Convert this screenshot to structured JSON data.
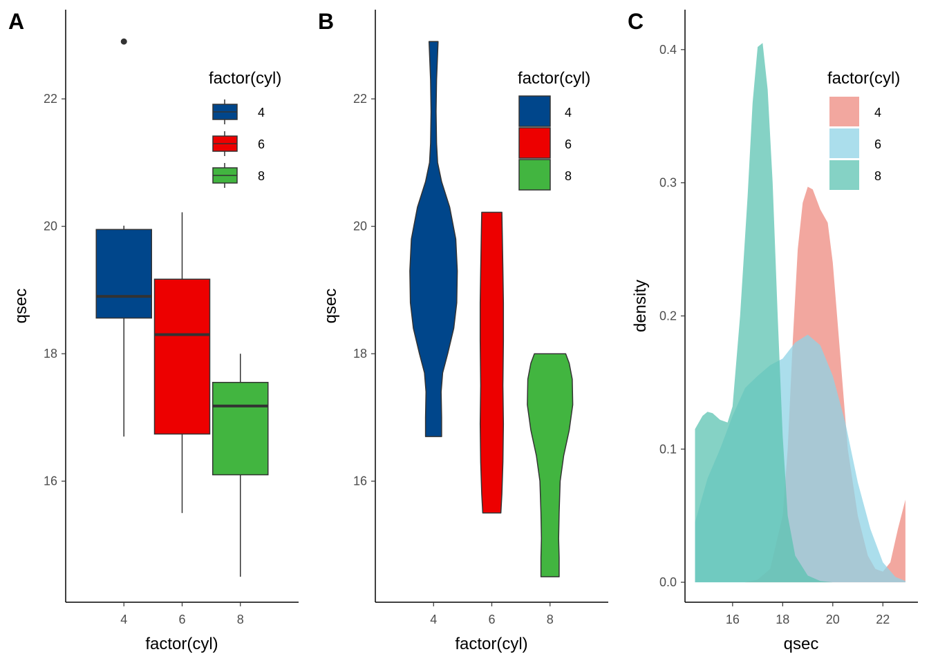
{
  "colors": {
    "box": {
      "4": "#00468B",
      "6": "#ED0000",
      "8": "#42B540"
    },
    "density": {
      "4": "#EE8A7F",
      "6": "#8FD3E6",
      "8": "#5CC3B2"
    },
    "density_opacity": 0.75,
    "outline": "#333333"
  },
  "chart_data": [
    {
      "tag": "A",
      "type": "box",
      "xlabel": "factor(cyl)",
      "ylabel": "qsec",
      "categories": [
        "4",
        "6",
        "8"
      ],
      "ylim": [
        14.1,
        23.4
      ],
      "yticks": [
        16,
        18,
        20,
        22
      ],
      "boxes": [
        {
          "category": "4",
          "min": 16.7,
          "q1": 18.56,
          "median": 18.9,
          "q3": 19.95,
          "max": 20.01,
          "outliers": [
            22.9
          ]
        },
        {
          "category": "6",
          "min": 15.5,
          "q1": 16.74,
          "median": 18.3,
          "q3": 19.17,
          "max": 20.22,
          "outliers": []
        },
        {
          "category": "8",
          "min": 14.5,
          "q1": 16.1,
          "median": 17.18,
          "q3": 17.55,
          "max": 18.0,
          "outliers": []
        }
      ],
      "legend": {
        "title": "factor(cyl)",
        "entries": [
          "4",
          "6",
          "8"
        ],
        "position": "top-right"
      }
    },
    {
      "tag": "B",
      "type": "violin",
      "xlabel": "factor(cyl)",
      "ylabel": "qsec",
      "categories": [
        "4",
        "6",
        "8"
      ],
      "ylim": [
        14.1,
        23.4
      ],
      "yticks": [
        16,
        18,
        20,
        22
      ],
      "violins": [
        {
          "category": "4",
          "profile": [
            [
              16.7,
              0.16
            ],
            [
              17.0,
              0.16
            ],
            [
              17.4,
              0.15
            ],
            [
              17.7,
              0.18
            ],
            [
              18.0,
              0.28
            ],
            [
              18.4,
              0.4
            ],
            [
              18.8,
              0.46
            ],
            [
              19.3,
              0.47
            ],
            [
              19.8,
              0.44
            ],
            [
              20.3,
              0.32
            ],
            [
              20.7,
              0.16
            ],
            [
              21.0,
              0.08
            ],
            [
              21.3,
              0.06
            ],
            [
              21.8,
              0.05
            ],
            [
              22.3,
              0.06
            ],
            [
              22.9,
              0.09
            ]
          ]
        },
        {
          "category": "6",
          "profile": [
            [
              15.5,
              0.18
            ],
            [
              15.8,
              0.2
            ],
            [
              16.3,
              0.22
            ],
            [
              16.9,
              0.23
            ],
            [
              17.5,
              0.22
            ],
            [
              18.2,
              0.23
            ],
            [
              18.8,
              0.23
            ],
            [
              19.3,
              0.22
            ],
            [
              19.8,
              0.21
            ],
            [
              20.22,
              0.2
            ]
          ]
        },
        {
          "category": "8",
          "profile": [
            [
              14.5,
              0.18
            ],
            [
              14.8,
              0.18
            ],
            [
              15.1,
              0.17
            ],
            [
              15.5,
              0.18
            ],
            [
              16.0,
              0.2
            ],
            [
              16.4,
              0.27
            ],
            [
              16.8,
              0.38
            ],
            [
              17.2,
              0.45
            ],
            [
              17.6,
              0.44
            ],
            [
              17.85,
              0.38
            ],
            [
              18.0,
              0.31
            ]
          ]
        }
      ],
      "legend": {
        "title": "factor(cyl)",
        "entries": [
          "4",
          "6",
          "8"
        ],
        "position": "top-right"
      }
    },
    {
      "tag": "C",
      "type": "area",
      "xlabel": "qsec",
      "ylabel": "density",
      "xlim": [
        14.1,
        23.4
      ],
      "ylim": [
        -0.015,
        0.43
      ],
      "xticks": [
        16,
        18,
        20,
        22
      ],
      "yticks": [
        0.0,
        0.1,
        0.2,
        0.3,
        0.4
      ],
      "ytick_labels": [
        "0.0",
        "0.1",
        "0.2",
        "0.3",
        "0.4"
      ],
      "series": [
        {
          "name": "4",
          "x": [
            14.5,
            15.5,
            16.5,
            17.0,
            17.5,
            18.0,
            18.2,
            18.4,
            18.6,
            18.8,
            19.0,
            19.2,
            19.5,
            19.8,
            20.0,
            20.3,
            20.6,
            21.0,
            21.4,
            21.7,
            22.0,
            22.3,
            22.6,
            22.9
          ],
          "y": [
            0.0,
            0.0,
            0.0,
            0.002,
            0.01,
            0.05,
            0.1,
            0.18,
            0.25,
            0.285,
            0.297,
            0.295,
            0.28,
            0.27,
            0.24,
            0.17,
            0.1,
            0.05,
            0.02,
            0.01,
            0.008,
            0.015,
            0.04,
            0.062
          ]
        },
        {
          "name": "6",
          "x": [
            14.5,
            15.0,
            15.5,
            16.0,
            16.5,
            17.0,
            17.5,
            18.0,
            18.5,
            19.0,
            19.5,
            20.0,
            20.5,
            21.0,
            21.5,
            22.0,
            22.5,
            22.9
          ],
          "y": [
            0.045,
            0.078,
            0.1,
            0.125,
            0.146,
            0.155,
            0.163,
            0.168,
            0.18,
            0.186,
            0.178,
            0.155,
            0.12,
            0.075,
            0.04,
            0.015,
            0.004,
            0.001
          ]
        },
        {
          "name": "8",
          "x": [
            14.5,
            14.8,
            15.0,
            15.2,
            15.5,
            15.8,
            16.0,
            16.3,
            16.6,
            16.8,
            17.0,
            17.2,
            17.4,
            17.6,
            17.8,
            18.0,
            18.2,
            18.5,
            19.0,
            19.5,
            20.0,
            20.5,
            22.9
          ],
          "y": [
            0.115,
            0.125,
            0.128,
            0.127,
            0.122,
            0.12,
            0.132,
            0.2,
            0.29,
            0.36,
            0.402,
            0.405,
            0.37,
            0.3,
            0.2,
            0.11,
            0.05,
            0.02,
            0.005,
            0.001,
            0.0,
            0.0,
            0.0
          ]
        }
      ],
      "legend": {
        "title": "factor(cyl)",
        "entries": [
          "4",
          "6",
          "8"
        ],
        "position": "top-right"
      }
    }
  ]
}
